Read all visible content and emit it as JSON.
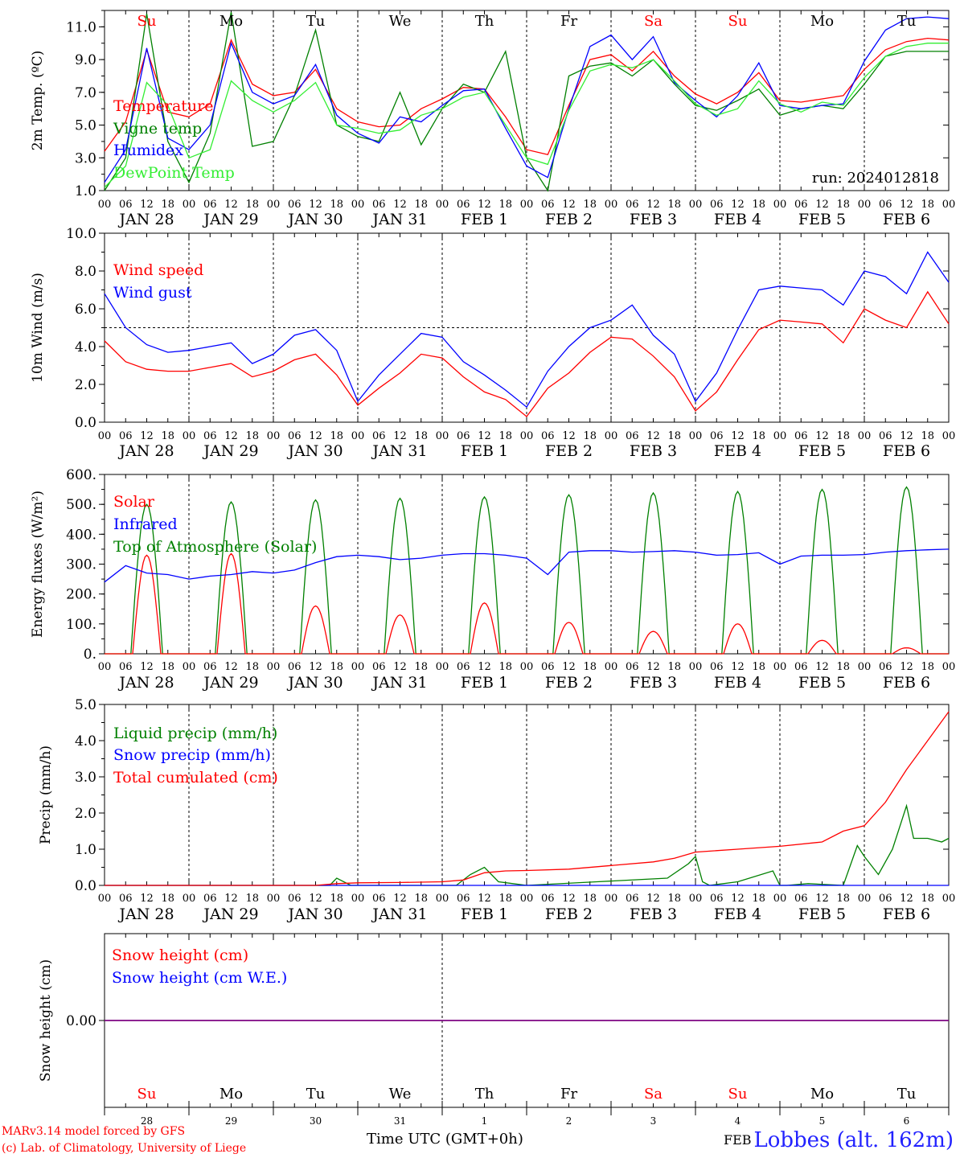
{
  "run_label": "run: 2024012818",
  "day_names": [
    "Su",
    "Mo",
    "Tu",
    "We",
    "Th",
    "Fr",
    "Sa",
    "Su",
    "Mo",
    "Tu"
  ],
  "weekend_days": [
    0,
    6,
    7
  ],
  "date_labels": [
    "JAN 28",
    "JAN 29",
    "JAN 30",
    "JAN 31",
    "FEB  1",
    "FEB  2",
    "FEB  3",
    "FEB  4",
    "FEB  5",
    "FEB  6"
  ],
  "hour_ticks": [
    "00",
    "06",
    "12",
    "18"
  ],
  "final_tick": "00",
  "bottom_day_numbers": [
    "28",
    "29",
    "30",
    "31",
    "1",
    "2",
    "3",
    "4",
    "5",
    "6"
  ],
  "footer": {
    "model_line": "MARv3.14 model forced by GFS",
    "lab_line": "(c) Lab. of Climatology, University of Liege",
    "axis_title": "Time UTC (GMT+0h)",
    "month_overlay": "FEB",
    "station": "Lobbes (alt. 162m)"
  },
  "colors": {
    "red": "#ff0000",
    "green": "#008000",
    "blue": "#0000ff",
    "lightgreen": "#33ee33",
    "purple": "#7f007f"
  },
  "chart_data": [
    {
      "type": "line",
      "id": "temp",
      "ylabel": "2m Temp. (ºC)",
      "ylim": [
        1,
        12
      ],
      "yticks": [
        1.0,
        3.0,
        5.0,
        7.0,
        9.0,
        11.0
      ],
      "ytick_labels": [
        "1.0",
        "3.0",
        "5.0",
        "7.0",
        "9.0",
        "11.0"
      ],
      "x_unit": "hours since JAN 28 00 UTC",
      "xlim": [
        0,
        240
      ],
      "series": [
        {
          "name": "Temperature",
          "color": "red",
          "x": [
            0,
            6,
            12,
            18,
            24,
            30,
            36,
            42,
            48,
            54,
            60,
            66,
            72,
            78,
            84,
            90,
            96,
            102,
            108,
            114,
            120,
            126,
            132,
            138,
            144,
            150,
            156,
            162,
            168,
            174,
            180,
            186,
            192,
            198,
            204,
            210,
            216,
            222,
            228,
            234,
            240
          ],
          "y": [
            3.4,
            5.2,
            9.6,
            5.8,
            5.5,
            6.3,
            10.2,
            7.5,
            6.8,
            7.0,
            8.4,
            6.0,
            5.2,
            4.9,
            5.0,
            6.0,
            6.6,
            7.3,
            7.2,
            5.5,
            3.5,
            3.2,
            6.2,
            9.0,
            9.3,
            8.3,
            9.5,
            8.0,
            6.9,
            6.3,
            7.0,
            8.2,
            6.5,
            6.4,
            6.6,
            6.8,
            8.4,
            9.6,
            10.1,
            10.3,
            10.2
          ]
        },
        {
          "name": "Vigne temp",
          "color": "green",
          "x": [
            0,
            6,
            12,
            18,
            24,
            30,
            36,
            42,
            48,
            54,
            60,
            66,
            72,
            78,
            84,
            90,
            96,
            102,
            108,
            114,
            120,
            126,
            132,
            138,
            144,
            150,
            156,
            162,
            168,
            174,
            180,
            186,
            192,
            198,
            204,
            210,
            216,
            222,
            228,
            234,
            240
          ],
          "y": [
            1.0,
            3.0,
            11.8,
            4.0,
            1.5,
            4.5,
            11.9,
            3.7,
            4.0,
            6.8,
            10.8,
            5.0,
            4.3,
            4.0,
            7.0,
            3.8,
            6.0,
            7.5,
            7.0,
            9.5,
            3.0,
            0.8,
            8.0,
            8.6,
            8.8,
            8.0,
            9.0,
            7.5,
            6.2,
            5.9,
            6.5,
            7.2,
            5.6,
            6.0,
            6.2,
            6.0,
            7.5,
            9.2,
            9.5,
            9.5,
            9.5
          ]
        },
        {
          "name": "Humidex",
          "color": "blue",
          "x": [
            0,
            6,
            12,
            18,
            24,
            30,
            36,
            42,
            48,
            54,
            60,
            66,
            72,
            78,
            84,
            90,
            96,
            102,
            108,
            114,
            120,
            126,
            132,
            138,
            144,
            150,
            156,
            162,
            168,
            174,
            180,
            186,
            192,
            198,
            204,
            210,
            216,
            222,
            228,
            234,
            240
          ],
          "y": [
            1.5,
            3.5,
            9.7,
            4.2,
            3.5,
            5.0,
            10.0,
            7.0,
            6.3,
            6.8,
            8.7,
            5.6,
            4.5,
            3.9,
            5.5,
            5.2,
            6.2,
            7.1,
            7.2,
            4.8,
            2.5,
            1.8,
            6.0,
            9.8,
            10.5,
            9.0,
            10.4,
            7.6,
            6.5,
            5.5,
            6.8,
            8.8,
            6.2,
            6.0,
            6.2,
            6.3,
            8.9,
            10.8,
            11.5,
            11.6,
            11.5
          ]
        },
        {
          "name": "DewPoint Temp",
          "color": "lightgreen",
          "x": [
            0,
            6,
            12,
            18,
            24,
            30,
            36,
            42,
            48,
            54,
            60,
            66,
            72,
            78,
            84,
            90,
            96,
            102,
            108,
            114,
            120,
            126,
            132,
            138,
            144,
            150,
            156,
            162,
            168,
            174,
            180,
            186,
            192,
            198,
            204,
            210,
            216,
            222,
            228,
            234,
            240
          ],
          "y": [
            1.2,
            2.5,
            7.6,
            6.2,
            3.0,
            3.5,
            7.7,
            6.5,
            5.8,
            6.5,
            7.6,
            5.0,
            4.8,
            4.5,
            4.7,
            5.6,
            6.0,
            6.7,
            7.0,
            5.0,
            3.0,
            2.6,
            5.9,
            8.3,
            8.7,
            8.5,
            9.0,
            7.7,
            6.3,
            5.6,
            6.0,
            7.7,
            6.3,
            5.8,
            6.4,
            6.2,
            7.9,
            9.2,
            9.8,
            10.0,
            10.0
          ]
        }
      ],
      "legend_placement": "left"
    },
    {
      "type": "line",
      "id": "wind",
      "ylabel": "10m Wind (m/s)",
      "ylim": [
        0,
        10
      ],
      "yticks": [
        0,
        2,
        4,
        6,
        8,
        10
      ],
      "ytick_labels": [
        "0.0",
        "2.0",
        "4.0",
        "6.0",
        "8.0",
        "10.0"
      ],
      "reference_line": 5.0,
      "xlim": [
        0,
        240
      ],
      "series": [
        {
          "name": "Wind speed",
          "color": "red",
          "x": [
            0,
            6,
            12,
            18,
            24,
            30,
            36,
            42,
            48,
            54,
            60,
            66,
            72,
            78,
            84,
            90,
            96,
            102,
            108,
            114,
            120,
            126,
            132,
            138,
            144,
            150,
            156,
            162,
            168,
            174,
            180,
            186,
            192,
            198,
            204,
            210,
            216,
            222,
            228,
            234,
            240
          ],
          "y": [
            4.3,
            3.2,
            2.8,
            2.7,
            2.7,
            2.9,
            3.1,
            2.4,
            2.7,
            3.3,
            3.6,
            2.5,
            0.9,
            1.8,
            2.6,
            3.6,
            3.4,
            2.4,
            1.6,
            1.2,
            0.3,
            1.8,
            2.6,
            3.7,
            4.5,
            4.4,
            3.5,
            2.4,
            0.6,
            1.6,
            3.3,
            4.9,
            5.4,
            5.3,
            5.2,
            4.2,
            6.0,
            5.4,
            5.0,
            6.9,
            5.2
          ]
        },
        {
          "name": "Wind gust",
          "color": "blue",
          "x": [
            0,
            6,
            12,
            18,
            24,
            30,
            36,
            42,
            48,
            54,
            60,
            66,
            72,
            78,
            84,
            90,
            96,
            102,
            108,
            114,
            120,
            126,
            132,
            138,
            144,
            150,
            156,
            162,
            168,
            174,
            180,
            186,
            192,
            198,
            204,
            210,
            216,
            222,
            228,
            234,
            240
          ],
          "y": [
            6.8,
            5.0,
            4.1,
            3.7,
            3.8,
            4.0,
            4.2,
            3.1,
            3.6,
            4.6,
            4.9,
            3.8,
            1.1,
            2.5,
            3.6,
            4.7,
            4.5,
            3.2,
            2.5,
            1.7,
            0.8,
            2.7,
            4.0,
            5.0,
            5.4,
            6.2,
            4.6,
            3.6,
            1.1,
            2.6,
            4.9,
            7.0,
            7.2,
            7.1,
            7.0,
            6.2,
            8.0,
            7.7,
            6.8,
            9.0,
            7.4
          ]
        }
      ],
      "legend_placement": "left"
    },
    {
      "type": "line",
      "id": "energy",
      "ylabel": "Energy fluxes (W/m²)",
      "ylim": [
        0,
        600
      ],
      "yticks": [
        0,
        100,
        200,
        300,
        400,
        500,
        600
      ],
      "ytick_labels": [
        "0.",
        "100.",
        "200.",
        "300.",
        "400.",
        "500.",
        "600."
      ],
      "xlim": [
        0,
        240
      ],
      "solar_peaks": [
        330,
        335,
        160,
        130,
        170,
        105,
        75,
        100,
        45,
        20
      ],
      "toa_peaks": [
        500,
        508,
        515,
        520,
        525,
        532,
        538,
        543,
        550,
        558
      ],
      "series": [
        {
          "name": "Solar",
          "color": "red"
        },
        {
          "name": "Infrared",
          "color": "blue",
          "x": [
            0,
            6,
            12,
            18,
            24,
            30,
            36,
            42,
            48,
            54,
            60,
            66,
            72,
            78,
            84,
            90,
            96,
            102,
            108,
            114,
            120,
            126,
            132,
            138,
            144,
            150,
            156,
            162,
            168,
            174,
            180,
            186,
            192,
            198,
            204,
            210,
            216,
            222,
            228,
            234,
            240
          ],
          "y": [
            240,
            295,
            270,
            265,
            250,
            260,
            265,
            275,
            270,
            280,
            305,
            325,
            330,
            325,
            315,
            320,
            330,
            335,
            335,
            330,
            320,
            265,
            340,
            345,
            345,
            340,
            342,
            345,
            340,
            330,
            332,
            338,
            300,
            327,
            330,
            330,
            332,
            340,
            345,
            348,
            350
          ]
        },
        {
          "name": "Top of Atmosphere (Solar)",
          "color": "green"
        }
      ],
      "legend_placement": "left"
    },
    {
      "type": "line",
      "id": "precip",
      "ylabel": "Precip (mm/h)",
      "ylim": [
        0,
        5
      ],
      "yticks": [
        0,
        1,
        2,
        3,
        4,
        5
      ],
      "ytick_labels": [
        "0.0",
        "1.0",
        "2.0",
        "3.0",
        "4.0",
        "5.0"
      ],
      "xlim": [
        0,
        240
      ],
      "series": [
        {
          "name": "Liquid precip (mm/h)",
          "color": "green",
          "x": [
            0,
            60,
            64,
            66,
            70,
            96,
            100,
            104,
            108,
            112,
            120,
            140,
            160,
            166,
            168,
            170,
            172,
            180,
            190,
            192,
            194,
            200,
            210,
            214,
            216,
            220,
            224,
            228,
            230,
            234,
            238,
            240
          ],
          "y": [
            0,
            0,
            0,
            0.2,
            0,
            0,
            0,
            0.3,
            0.5,
            0.1,
            0,
            0.1,
            0.2,
            0.6,
            0.8,
            0.1,
            0,
            0.1,
            0.4,
            0,
            0,
            0.05,
            0,
            1.1,
            0.8,
            0.3,
            1.0,
            2.2,
            1.3,
            1.3,
            1.2,
            1.3
          ]
        },
        {
          "name": "Snow precip (mm/h)",
          "color": "blue",
          "x": [
            0,
            240
          ],
          "y": [
            0,
            0
          ]
        },
        {
          "name": "Total cumulated (cm)",
          "color": "red",
          "x": [
            0,
            60,
            66,
            72,
            84,
            96,
            102,
            108,
            114,
            120,
            132,
            144,
            156,
            162,
            168,
            180,
            192,
            204,
            210,
            216,
            222,
            228,
            234,
            240
          ],
          "y": [
            0,
            0,
            0.05,
            0.07,
            0.08,
            0.1,
            0.15,
            0.35,
            0.4,
            0.41,
            0.45,
            0.55,
            0.65,
            0.75,
            0.92,
            1.0,
            1.08,
            1.2,
            1.5,
            1.65,
            2.3,
            3.2,
            4.0,
            4.8
          ]
        }
      ],
      "legend_placement": "left"
    },
    {
      "type": "line",
      "id": "snow",
      "ylabel": "Snow height (cm)",
      "ylim": [
        -1,
        1
      ],
      "yticks": [
        0
      ],
      "ytick_labels": [
        "0.00"
      ],
      "xlim": [
        0,
        240
      ],
      "series": [
        {
          "name": "Snow height (cm)",
          "color": "red",
          "x": [
            0,
            240
          ],
          "y": [
            0,
            0
          ]
        },
        {
          "name": "Snow height (cm W.E.)",
          "color": "blue",
          "x": [
            0,
            240
          ],
          "y": [
            0,
            0
          ]
        }
      ],
      "legend_placement": "left"
    }
  ]
}
